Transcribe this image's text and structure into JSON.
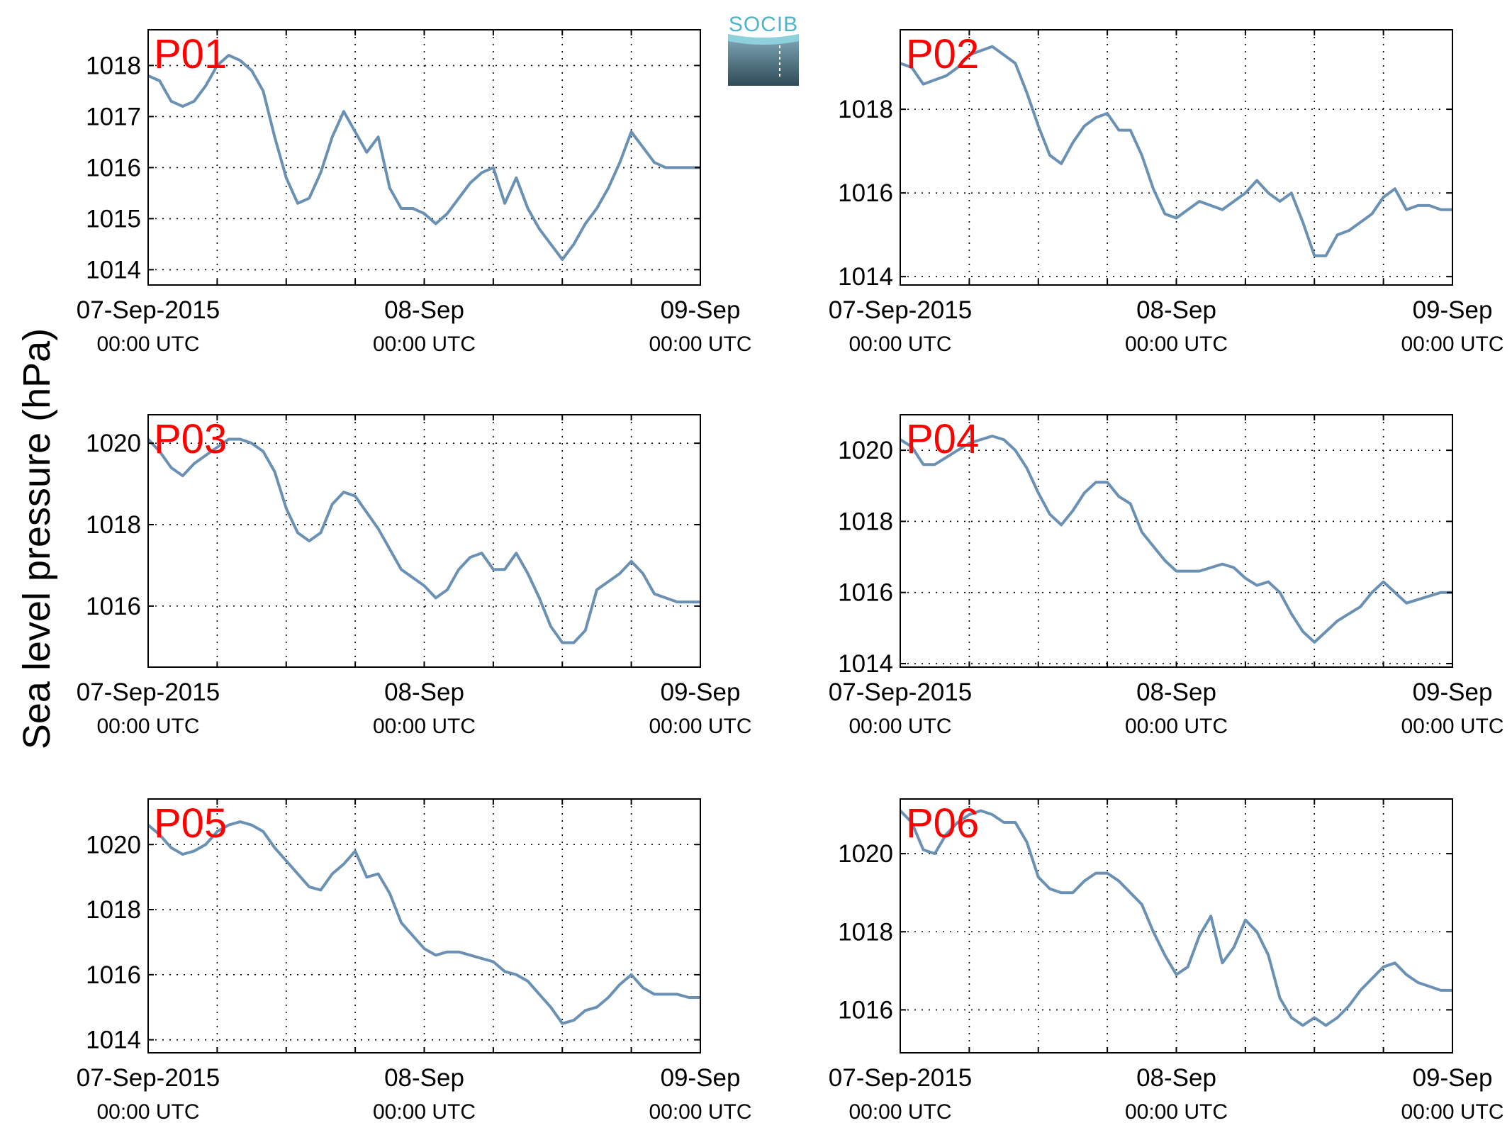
{
  "figure": {
    "ylabel": "Sea level pressure (hPa)",
    "logo_text": "SOCIB",
    "line_color": "#6a91b4",
    "label_color": "#ff0000"
  },
  "chart_data": [
    {
      "type": "line",
      "label": "P01",
      "x_unit": "hours since 07-Sep-2015 00:00 UTC",
      "xlim": [
        0,
        48
      ],
      "ylim": [
        1013.7,
        1018.7
      ],
      "yticks": [
        1014,
        1015,
        1016,
        1017,
        1018
      ],
      "xticks": [
        0,
        6,
        12,
        18,
        24,
        30,
        36,
        42,
        48
      ],
      "xticklabels": [
        {
          "x": 0,
          "top": "07-Sep-2015",
          "bottom": "00:00 UTC"
        },
        {
          "x": 24,
          "top": "08-Sep",
          "bottom": "00:00 UTC"
        },
        {
          "x": 48,
          "top": "09-Sep",
          "bottom": "00:00 UTC"
        }
      ],
      "x": [
        0,
        1,
        2,
        3,
        4,
        5,
        6,
        7,
        8,
        9,
        10,
        11,
        12,
        13,
        14,
        15,
        16,
        17,
        18,
        19,
        20,
        21,
        22,
        23,
        24,
        25,
        26,
        27,
        28,
        29,
        30,
        31,
        32,
        33,
        34,
        35,
        36,
        37,
        38,
        39,
        40,
        41,
        42,
        43,
        44,
        45,
        46,
        47,
        48
      ],
      "y": [
        1017.8,
        1017.7,
        1017.3,
        1017.2,
        1017.3,
        1017.6,
        1018.0,
        1018.2,
        1018.1,
        1017.9,
        1017.5,
        1016.6,
        1015.8,
        1015.3,
        1015.4,
        1015.9,
        1016.6,
        1017.1,
        1016.7,
        1016.3,
        1016.6,
        1015.6,
        1015.2,
        1015.2,
        1015.1,
        1014.9,
        1015.1,
        1015.4,
        1015.7,
        1015.9,
        1016.0,
        1015.3,
        1015.8,
        1015.2,
        1014.8,
        1014.5,
        1014.2,
        1014.5,
        1014.9,
        1015.2,
        1015.6,
        1016.1,
        1016.7,
        1016.4,
        1016.1,
        1016.0,
        1016.0,
        1016.0,
        1016.0
      ]
    },
    {
      "type": "line",
      "label": "P02",
      "x_unit": "hours since 07-Sep-2015 00:00 UTC",
      "xlim": [
        0,
        48
      ],
      "ylim": [
        1013.8,
        1019.9
      ],
      "yticks": [
        1014,
        1016,
        1018
      ],
      "xticks": [
        0,
        6,
        12,
        18,
        24,
        30,
        36,
        42,
        48
      ],
      "xticklabels": [
        {
          "x": 0,
          "top": "07-Sep-2015",
          "bottom": "00:00 UTC"
        },
        {
          "x": 24,
          "top": "08-Sep",
          "bottom": "00:00 UTC"
        },
        {
          "x": 48,
          "top": "09-Sep",
          "bottom": "00:00 UTC"
        }
      ],
      "x": [
        0,
        1,
        2,
        3,
        4,
        5,
        6,
        7,
        8,
        9,
        10,
        11,
        12,
        13,
        14,
        15,
        16,
        17,
        18,
        19,
        20,
        21,
        22,
        23,
        24,
        25,
        26,
        27,
        28,
        29,
        30,
        31,
        32,
        33,
        34,
        35,
        36,
        37,
        38,
        39,
        40,
        41,
        42,
        43,
        44,
        45,
        46,
        47,
        48
      ],
      "y": [
        1019.1,
        1019.0,
        1018.6,
        1018.7,
        1018.8,
        1019.0,
        1019.3,
        1019.4,
        1019.5,
        1019.3,
        1019.1,
        1018.4,
        1017.6,
        1016.9,
        1016.7,
        1017.2,
        1017.6,
        1017.8,
        1017.9,
        1017.5,
        1017.5,
        1016.9,
        1016.1,
        1015.5,
        1015.4,
        1015.6,
        1015.8,
        1015.7,
        1015.6,
        1015.8,
        1016.0,
        1016.3,
        1016.0,
        1015.8,
        1016.0,
        1015.3,
        1014.5,
        1014.5,
        1015.0,
        1015.1,
        1015.3,
        1015.5,
        1015.9,
        1016.1,
        1015.6,
        1015.7,
        1015.7,
        1015.6,
        1015.6
      ]
    },
    {
      "type": "line",
      "label": "P03",
      "x_unit": "hours since 07-Sep-2015 00:00 UTC",
      "xlim": [
        0,
        48
      ],
      "ylim": [
        1014.5,
        1020.7
      ],
      "yticks": [
        1016,
        1018,
        1020
      ],
      "xticks": [
        0,
        6,
        12,
        18,
        24,
        30,
        36,
        42,
        48
      ],
      "xticklabels": [
        {
          "x": 0,
          "top": "07-Sep-2015",
          "bottom": "00:00 UTC"
        },
        {
          "x": 24,
          "top": "08-Sep",
          "bottom": "00:00 UTC"
        },
        {
          "x": 48,
          "top": "09-Sep",
          "bottom": "00:00 UTC"
        }
      ],
      "x": [
        0,
        1,
        2,
        3,
        4,
        5,
        6,
        7,
        8,
        9,
        10,
        11,
        12,
        13,
        14,
        15,
        16,
        17,
        18,
        19,
        20,
        21,
        22,
        23,
        24,
        25,
        26,
        27,
        28,
        29,
        30,
        31,
        32,
        33,
        34,
        35,
        36,
        37,
        38,
        39,
        40,
        41,
        42,
        43,
        44,
        45,
        46,
        47,
        48
      ],
      "y": [
        1020.1,
        1019.8,
        1019.4,
        1019.2,
        1019.5,
        1019.7,
        1019.9,
        1020.1,
        1020.1,
        1020.0,
        1019.8,
        1019.3,
        1018.4,
        1017.8,
        1017.6,
        1017.8,
        1018.5,
        1018.8,
        1018.7,
        1018.3,
        1017.9,
        1017.4,
        1016.9,
        1016.7,
        1016.5,
        1016.2,
        1016.4,
        1016.9,
        1017.2,
        1017.3,
        1016.9,
        1016.9,
        1017.3,
        1016.8,
        1016.2,
        1015.5,
        1015.1,
        1015.1,
        1015.4,
        1016.4,
        1016.6,
        1016.8,
        1017.1,
        1016.8,
        1016.3,
        1016.2,
        1016.1,
        1016.1,
        1016.1
      ]
    },
    {
      "type": "line",
      "label": "P04",
      "x_unit": "hours since 07-Sep-2015 00:00 UTC",
      "xlim": [
        0,
        48
      ],
      "ylim": [
        1013.9,
        1021.0
      ],
      "yticks": [
        1014,
        1016,
        1018,
        1020
      ],
      "xticks": [
        0,
        6,
        12,
        18,
        24,
        30,
        36,
        42,
        48
      ],
      "xticklabels": [
        {
          "x": 0,
          "top": "07-Sep-2015",
          "bottom": "00:00 UTC"
        },
        {
          "x": 24,
          "top": "08-Sep",
          "bottom": "00:00 UTC"
        },
        {
          "x": 48,
          "top": "09-Sep",
          "bottom": "00:00 UTC"
        }
      ],
      "x": [
        0,
        1,
        2,
        3,
        4,
        5,
        6,
        7,
        8,
        9,
        10,
        11,
        12,
        13,
        14,
        15,
        16,
        17,
        18,
        19,
        20,
        21,
        22,
        23,
        24,
        25,
        26,
        27,
        28,
        29,
        30,
        31,
        32,
        33,
        34,
        35,
        36,
        37,
        38,
        39,
        40,
        41,
        42,
        43,
        44,
        45,
        46,
        47,
        48
      ],
      "y": [
        1020.3,
        1020.1,
        1019.6,
        1019.6,
        1019.8,
        1020.0,
        1020.2,
        1020.3,
        1020.4,
        1020.3,
        1020.0,
        1019.5,
        1018.8,
        1018.2,
        1017.9,
        1018.3,
        1018.8,
        1019.1,
        1019.1,
        1018.7,
        1018.5,
        1017.7,
        1017.3,
        1016.9,
        1016.6,
        1016.6,
        1016.6,
        1016.7,
        1016.8,
        1016.7,
        1016.4,
        1016.2,
        1016.3,
        1016.0,
        1015.4,
        1014.9,
        1014.6,
        1014.9,
        1015.2,
        1015.4,
        1015.6,
        1016.0,
        1016.3,
        1016.0,
        1015.7,
        1015.8,
        1015.9,
        1016.0,
        1016.0
      ]
    },
    {
      "type": "line",
      "label": "P05",
      "x_unit": "hours since 07-Sep-2015 00:00 UTC",
      "xlim": [
        0,
        48
      ],
      "ylim": [
        1013.6,
        1021.4
      ],
      "yticks": [
        1014,
        1016,
        1018,
        1020
      ],
      "xticks": [
        0,
        6,
        12,
        18,
        24,
        30,
        36,
        42,
        48
      ],
      "xticklabels": [
        {
          "x": 0,
          "top": "07-Sep-2015",
          "bottom": "00:00 UTC"
        },
        {
          "x": 24,
          "top": "08-Sep",
          "bottom": "00:00 UTC"
        },
        {
          "x": 48,
          "top": "09-Sep",
          "bottom": "00:00 UTC"
        }
      ],
      "x": [
        0,
        1,
        2,
        3,
        4,
        5,
        6,
        7,
        8,
        9,
        10,
        11,
        12,
        13,
        14,
        15,
        16,
        17,
        18,
        19,
        20,
        21,
        22,
        23,
        24,
        25,
        26,
        27,
        28,
        29,
        30,
        31,
        32,
        33,
        34,
        35,
        36,
        37,
        38,
        39,
        40,
        41,
        42,
        43,
        44,
        45,
        46,
        47,
        48
      ],
      "y": [
        1020.6,
        1020.3,
        1019.9,
        1019.7,
        1019.8,
        1020.0,
        1020.4,
        1020.6,
        1020.7,
        1020.6,
        1020.4,
        1019.9,
        1019.5,
        1019.1,
        1018.7,
        1018.6,
        1019.1,
        1019.4,
        1019.8,
        1019.0,
        1019.1,
        1018.5,
        1017.6,
        1017.2,
        1016.8,
        1016.6,
        1016.7,
        1016.7,
        1016.6,
        1016.5,
        1016.4,
        1016.1,
        1016.0,
        1015.8,
        1015.4,
        1015.0,
        1014.5,
        1014.6,
        1014.9,
        1015.0,
        1015.3,
        1015.7,
        1016.0,
        1015.6,
        1015.4,
        1015.4,
        1015.4,
        1015.3,
        1015.3
      ]
    },
    {
      "type": "line",
      "label": "P06",
      "x_unit": "hours since 07-Sep-2015 00:00 UTC",
      "xlim": [
        0,
        48
      ],
      "ylim": [
        1014.9,
        1021.4
      ],
      "yticks": [
        1016,
        1018,
        1020
      ],
      "xticks": [
        0,
        6,
        12,
        18,
        24,
        30,
        36,
        42,
        48
      ],
      "xticklabels": [
        {
          "x": 0,
          "top": "07-Sep-2015",
          "bottom": "00:00 UTC"
        },
        {
          "x": 24,
          "top": "08-Sep",
          "bottom": "00:00 UTC"
        },
        {
          "x": 48,
          "top": "09-Sep",
          "bottom": "00:00 UTC"
        }
      ],
      "x": [
        0,
        1,
        2,
        3,
        4,
        5,
        6,
        7,
        8,
        9,
        10,
        11,
        12,
        13,
        14,
        15,
        16,
        17,
        18,
        19,
        20,
        21,
        22,
        23,
        24,
        25,
        26,
        27,
        28,
        29,
        30,
        31,
        32,
        33,
        34,
        35,
        36,
        37,
        38,
        39,
        40,
        41,
        42,
        43,
        44,
        45,
        46,
        47,
        48
      ],
      "y": [
        1021.1,
        1020.8,
        1020.1,
        1020.0,
        1020.5,
        1020.8,
        1021.0,
        1021.1,
        1021.0,
        1020.8,
        1020.8,
        1020.3,
        1019.4,
        1019.1,
        1019.0,
        1019.0,
        1019.3,
        1019.5,
        1019.5,
        1019.3,
        1019.0,
        1018.7,
        1018.0,
        1017.4,
        1016.9,
        1017.1,
        1017.9,
        1018.4,
        1017.2,
        1017.6,
        1018.3,
        1018.0,
        1017.4,
        1016.3,
        1015.8,
        1015.6,
        1015.8,
        1015.6,
        1015.8,
        1016.1,
        1016.5,
        1016.8,
        1017.1,
        1017.2,
        1016.9,
        1016.7,
        1016.6,
        1016.5,
        1016.5
      ]
    }
  ]
}
